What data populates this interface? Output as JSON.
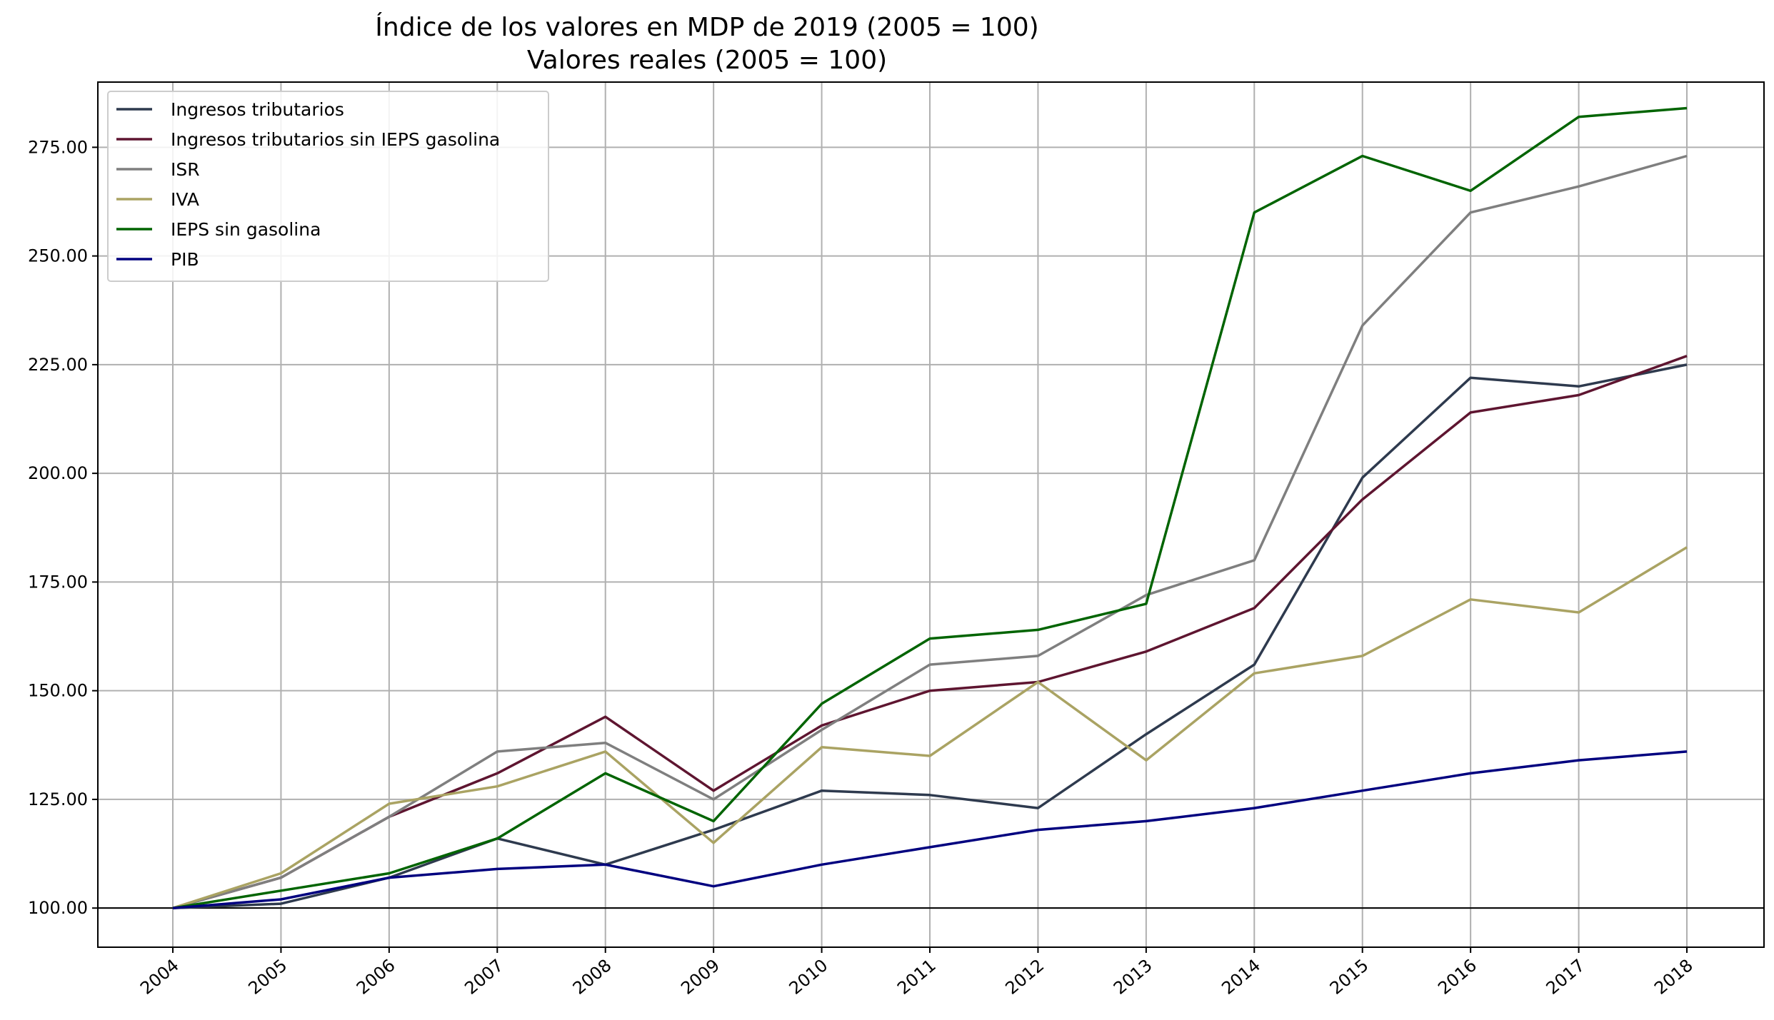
{
  "chart_data": {
    "type": "line",
    "title": "Índice de los valores en MDP de 2019 (2005 = 100)",
    "subtitle": "Valores reales (2005 = 100)",
    "xlabel": "",
    "ylabel": "",
    "x": [
      "2004",
      "2005",
      "2006",
      "2007",
      "2008",
      "2009",
      "2010",
      "2011",
      "2012",
      "2013",
      "2014",
      "2015",
      "2016",
      "2017",
      "2018"
    ],
    "ylim": [
      91,
      290
    ],
    "yticks": [
      100,
      125,
      150,
      175,
      200,
      225,
      250,
      275
    ],
    "ytick_labels": [
      "100.00",
      "125.00",
      "150.00",
      "175.00",
      "200.00",
      "225.00",
      "250.00",
      "275.00"
    ],
    "grid": true,
    "reference_line": 100,
    "legend_position": "top-left",
    "series": [
      {
        "name": "Ingresos tributarios",
        "color": "#2e3a4e",
        "values": [
          100,
          101,
          107,
          116,
          110,
          118,
          127,
          126,
          123,
          140,
          156,
          199,
          222,
          220,
          225
        ]
      },
      {
        "name": "Ingresos tributarios sin IEPS gasolina",
        "color": "#5e1530",
        "values": [
          100,
          107,
          121,
          131,
          144,
          127,
          142,
          150,
          152,
          159,
          169,
          194,
          214,
          218,
          227
        ]
      },
      {
        "name": "ISR",
        "color": "#7f7f7f",
        "values": [
          100,
          107,
          121,
          136,
          138,
          125,
          141,
          156,
          158,
          172,
          180,
          234,
          260,
          266,
          273
        ]
      },
      {
        "name": "IVA",
        "color": "#aaa363",
        "values": [
          100,
          108,
          124,
          128,
          136,
          115,
          137,
          135,
          152,
          134,
          154,
          158,
          171,
          168,
          183
        ]
      },
      {
        "name": "IEPS sin gasolina",
        "color": "#006400",
        "values": [
          100,
          104,
          108,
          116,
          131,
          120,
          147,
          162,
          164,
          170,
          260,
          273,
          265,
          282,
          284
        ]
      },
      {
        "name": "PIB",
        "color": "#00007f",
        "values": [
          100,
          102,
          107,
          109,
          110,
          105,
          110,
          114,
          118,
          120,
          123,
          127,
          131,
          134,
          136
        ]
      }
    ]
  }
}
